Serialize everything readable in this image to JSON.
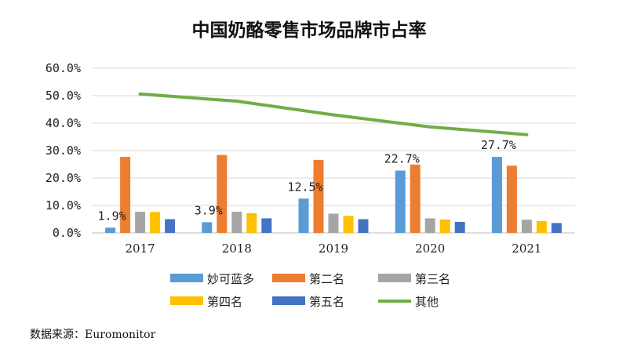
{
  "chart_data": {
    "type": "bar",
    "title": "中国奶酪零售市场品牌市占率",
    "categories": [
      "2017",
      "2018",
      "2019",
      "2020",
      "2021"
    ],
    "ylim": [
      0,
      60
    ],
    "yticks": [
      "0.0%",
      "10.0%",
      "20.0%",
      "30.0%",
      "40.0%",
      "50.0%",
      "60.0%"
    ],
    "grid": true,
    "legend_position": "bottom",
    "series": [
      {
        "name": "妙可蓝多",
        "type": "bar",
        "color": "#5B9BD5",
        "values": [
          1.9,
          3.9,
          12.5,
          22.7,
          27.7
        ]
      },
      {
        "name": "第二名",
        "type": "bar",
        "color": "#ED7D31",
        "values": [
          27.7,
          28.4,
          26.6,
          24.9,
          24.5
        ]
      },
      {
        "name": "第三名",
        "type": "bar",
        "color": "#A5A5A5",
        "values": [
          7.7,
          7.7,
          7.0,
          5.3,
          4.8
        ]
      },
      {
        "name": "第四名",
        "type": "bar",
        "color": "#FFC000",
        "values": [
          7.6,
          7.2,
          6.2,
          4.9,
          4.3
        ]
      },
      {
        "name": "第五名",
        "type": "bar",
        "color": "#4472C4",
        "values": [
          5.0,
          5.3,
          5.0,
          4.0,
          3.6
        ]
      },
      {
        "name": "其他",
        "type": "line",
        "color": "#70AD47",
        "values": [
          50.6,
          48.0,
          43.0,
          38.6,
          35.8
        ]
      }
    ],
    "data_labels": [
      {
        "series": "妙可蓝多",
        "index": 0,
        "text": "1.9%"
      },
      {
        "series": "妙可蓝多",
        "index": 1,
        "text": "3.9%"
      },
      {
        "series": "妙可蓝多",
        "index": 2,
        "text": "12.5%"
      },
      {
        "series": "妙可蓝多",
        "index": 3,
        "text": "22.7%"
      },
      {
        "series": "妙可蓝多",
        "index": 4,
        "text": "27.7%"
      }
    ]
  },
  "source": "数据来源：Euromonitor"
}
